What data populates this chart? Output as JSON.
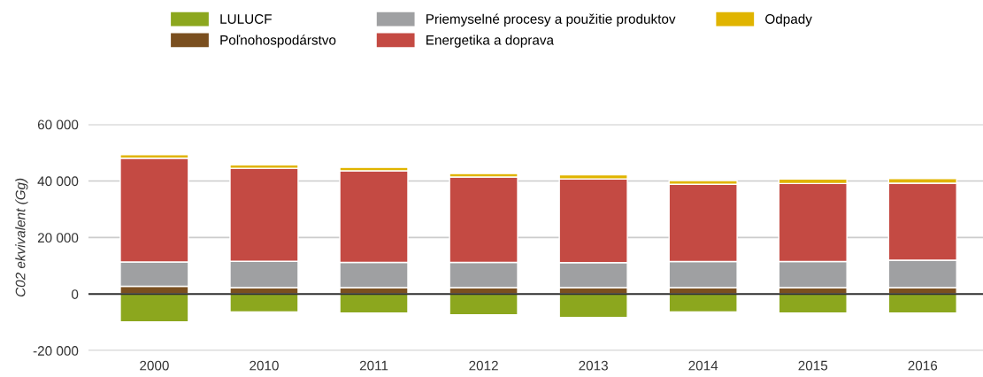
{
  "chart_data": {
    "type": "bar",
    "stacked": true,
    "ylabel": "C02 ekvivalent (Gg)",
    "categories": [
      "2000",
      "2010",
      "2011",
      "2012",
      "2013",
      "2014",
      "2015",
      "2016"
    ],
    "series": [
      {
        "name": "LULUCF",
        "color": "#8ca71e",
        "values": [
          -9800,
          -6350,
          -6700,
          -7300,
          -8250,
          -6350,
          -6700,
          -6700
        ]
      },
      {
        "name": "Poľnohospodárstvo",
        "color": "#7a4f1f",
        "values": [
          2750,
          2300,
          2300,
          2300,
          2300,
          2300,
          2300,
          2300
        ]
      },
      {
        "name": "Priemyselné procesy a použitie produktov",
        "color": "#9fa0a2",
        "values": [
          8600,
          9300,
          8900,
          8900,
          8800,
          9200,
          9200,
          9700
        ]
      },
      {
        "name": "Energetika a doprava",
        "color": "#c44a43",
        "values": [
          36700,
          32900,
          32400,
          30200,
          29600,
          27300,
          27600,
          27200
        ]
      },
      {
        "name": "Odpady",
        "color": "#e0b400",
        "values": [
          1200,
          1200,
          1200,
          1200,
          1500,
          1300,
          1600,
          1600
        ]
      }
    ],
    "ylim": [
      -20000,
      60000
    ],
    "yticks": [
      {
        "value": -20000,
        "label": "-20 000"
      },
      {
        "value": 0,
        "label": "0"
      },
      {
        "value": 20000,
        "label": "20 000"
      },
      {
        "value": 40000,
        "label": "40 000"
      },
      {
        "value": 60000,
        "label": "60 000"
      }
    ],
    "ref_lines": [
      {
        "axis": "y",
        "value": 0,
        "color": "#333333"
      }
    ],
    "grid": "y",
    "legend": "top"
  }
}
